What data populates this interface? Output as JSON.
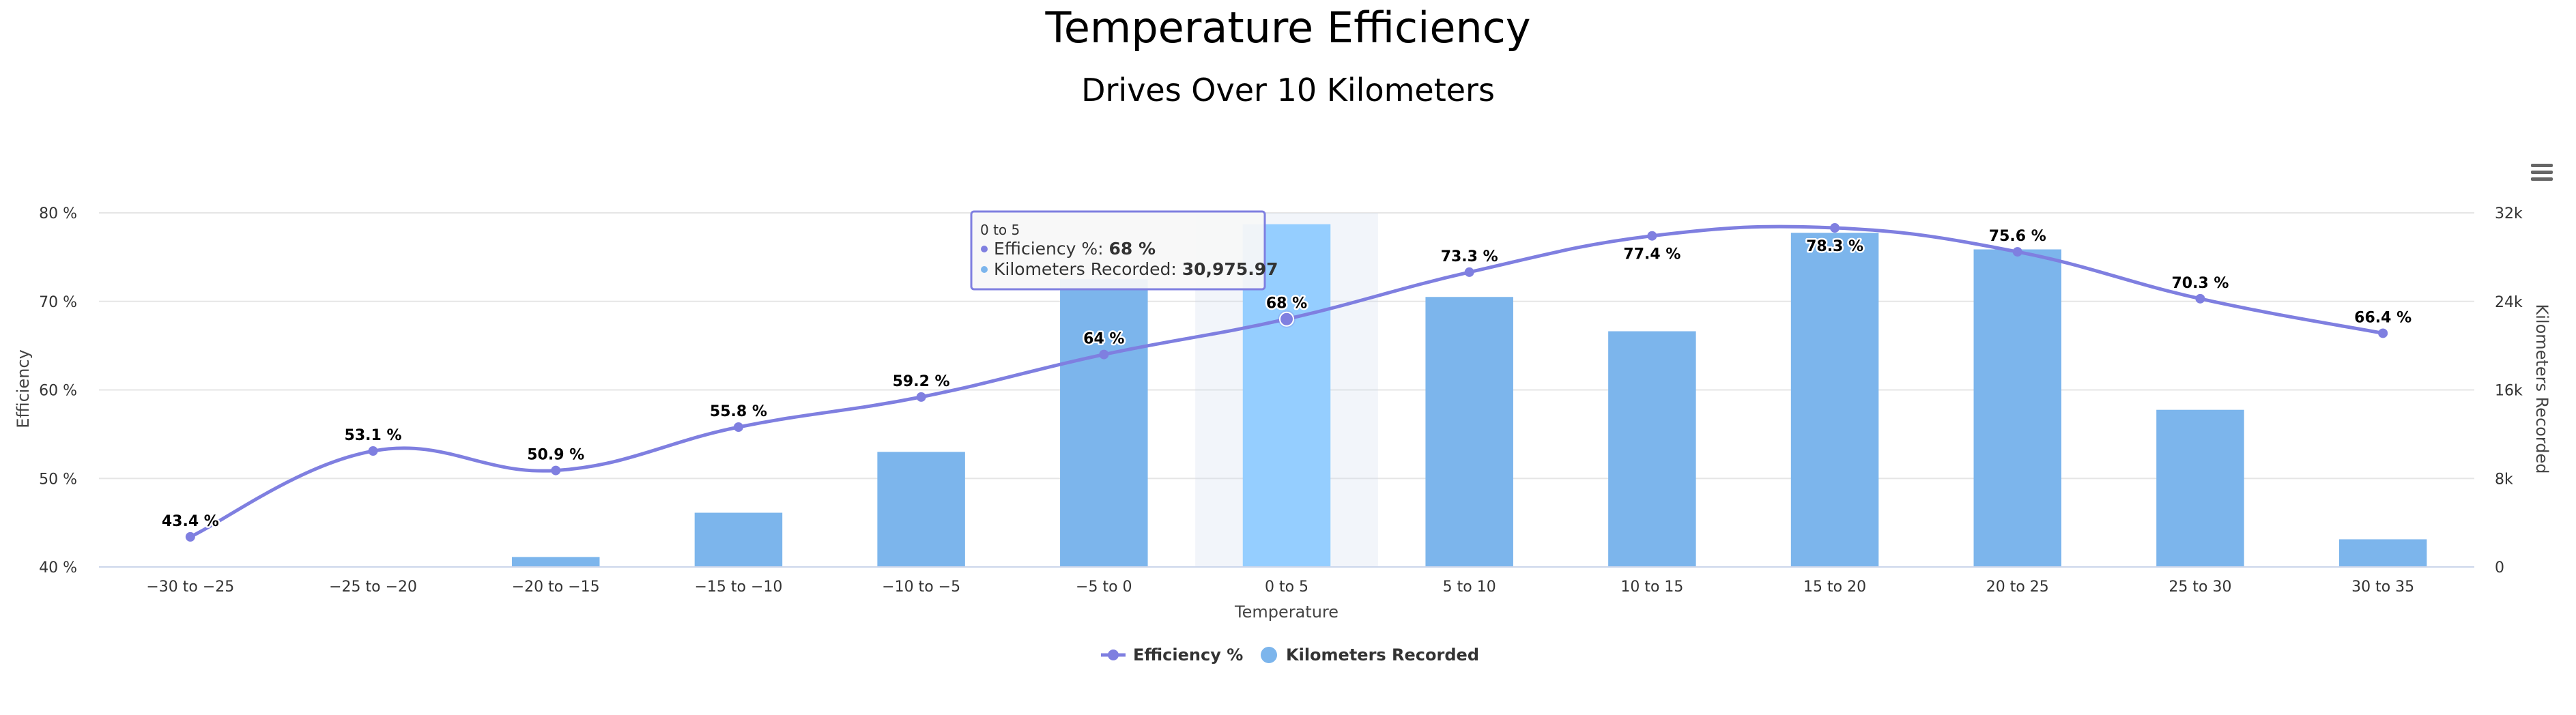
{
  "chart_data": {
    "type": "bar",
    "title": "Temperature Efficiency",
    "subtitle": "Drives Over 10 Kilometers",
    "xlabel": "Temperature",
    "ylabel": "Efficiency",
    "y2label": "Kilometers Recorded",
    "categories": [
      "−30 to −25",
      "−25 to −20",
      "−20 to −15",
      "−15 to −10",
      "−10 to −5",
      "−5 to 0",
      "0 to 5",
      "5 to 10",
      "10 to 15",
      "15 to 20",
      "20 to 25",
      "25 to 30",
      "30 to 35"
    ],
    "ylim": [
      40,
      80
    ],
    "yticks": [
      "40 %",
      "50 %",
      "60 %",
      "70 %",
      "80 %"
    ],
    "y2lim": [
      0,
      32000
    ],
    "y2ticks": [
      "0",
      "8k",
      "16k",
      "24k",
      "32k"
    ],
    "series": [
      {
        "name": "Efficiency %",
        "type": "line",
        "axis": "left",
        "color": "#7f7fe0",
        "values": [
          43.4,
          53.1,
          50.9,
          55.8,
          59.2,
          64,
          68,
          73.3,
          77.4,
          78.3,
          75.6,
          70.3,
          66.4
        ],
        "labels": [
          "43.4 %",
          "53.1 %",
          "50.9 %",
          "55.8 %",
          "59.2 %",
          "64 %",
          "68 %",
          "73.3 %",
          "77.4 %",
          "78.3 %",
          "75.6 %",
          "70.3 %",
          "66.4 %"
        ]
      },
      {
        "name": "Kilometers Recorded",
        "type": "column",
        "axis": "right",
        "color": "#7cb5ec",
        "hover_color": "#95ceff",
        "values": [
          0,
          0,
          900,
          4900,
          10400,
          26000,
          30975.97,
          24400,
          21300,
          30200,
          28700,
          14200,
          2500
        ]
      }
    ],
    "legend": [
      "Efficiency %",
      "Kilometers Recorded"
    ],
    "legend_position": "bottom-center",
    "tooltip": {
      "header": "0 to 5",
      "rows": [
        {
          "label": "Efficiency %: ",
          "value": "68 %"
        },
        {
          "label": "Kilometers Recorded: ",
          "value": "30,975.97"
        }
      ]
    },
    "hovered_index": 6,
    "grid": true
  },
  "ui": {
    "menu_icon": "hamburger-icon"
  }
}
